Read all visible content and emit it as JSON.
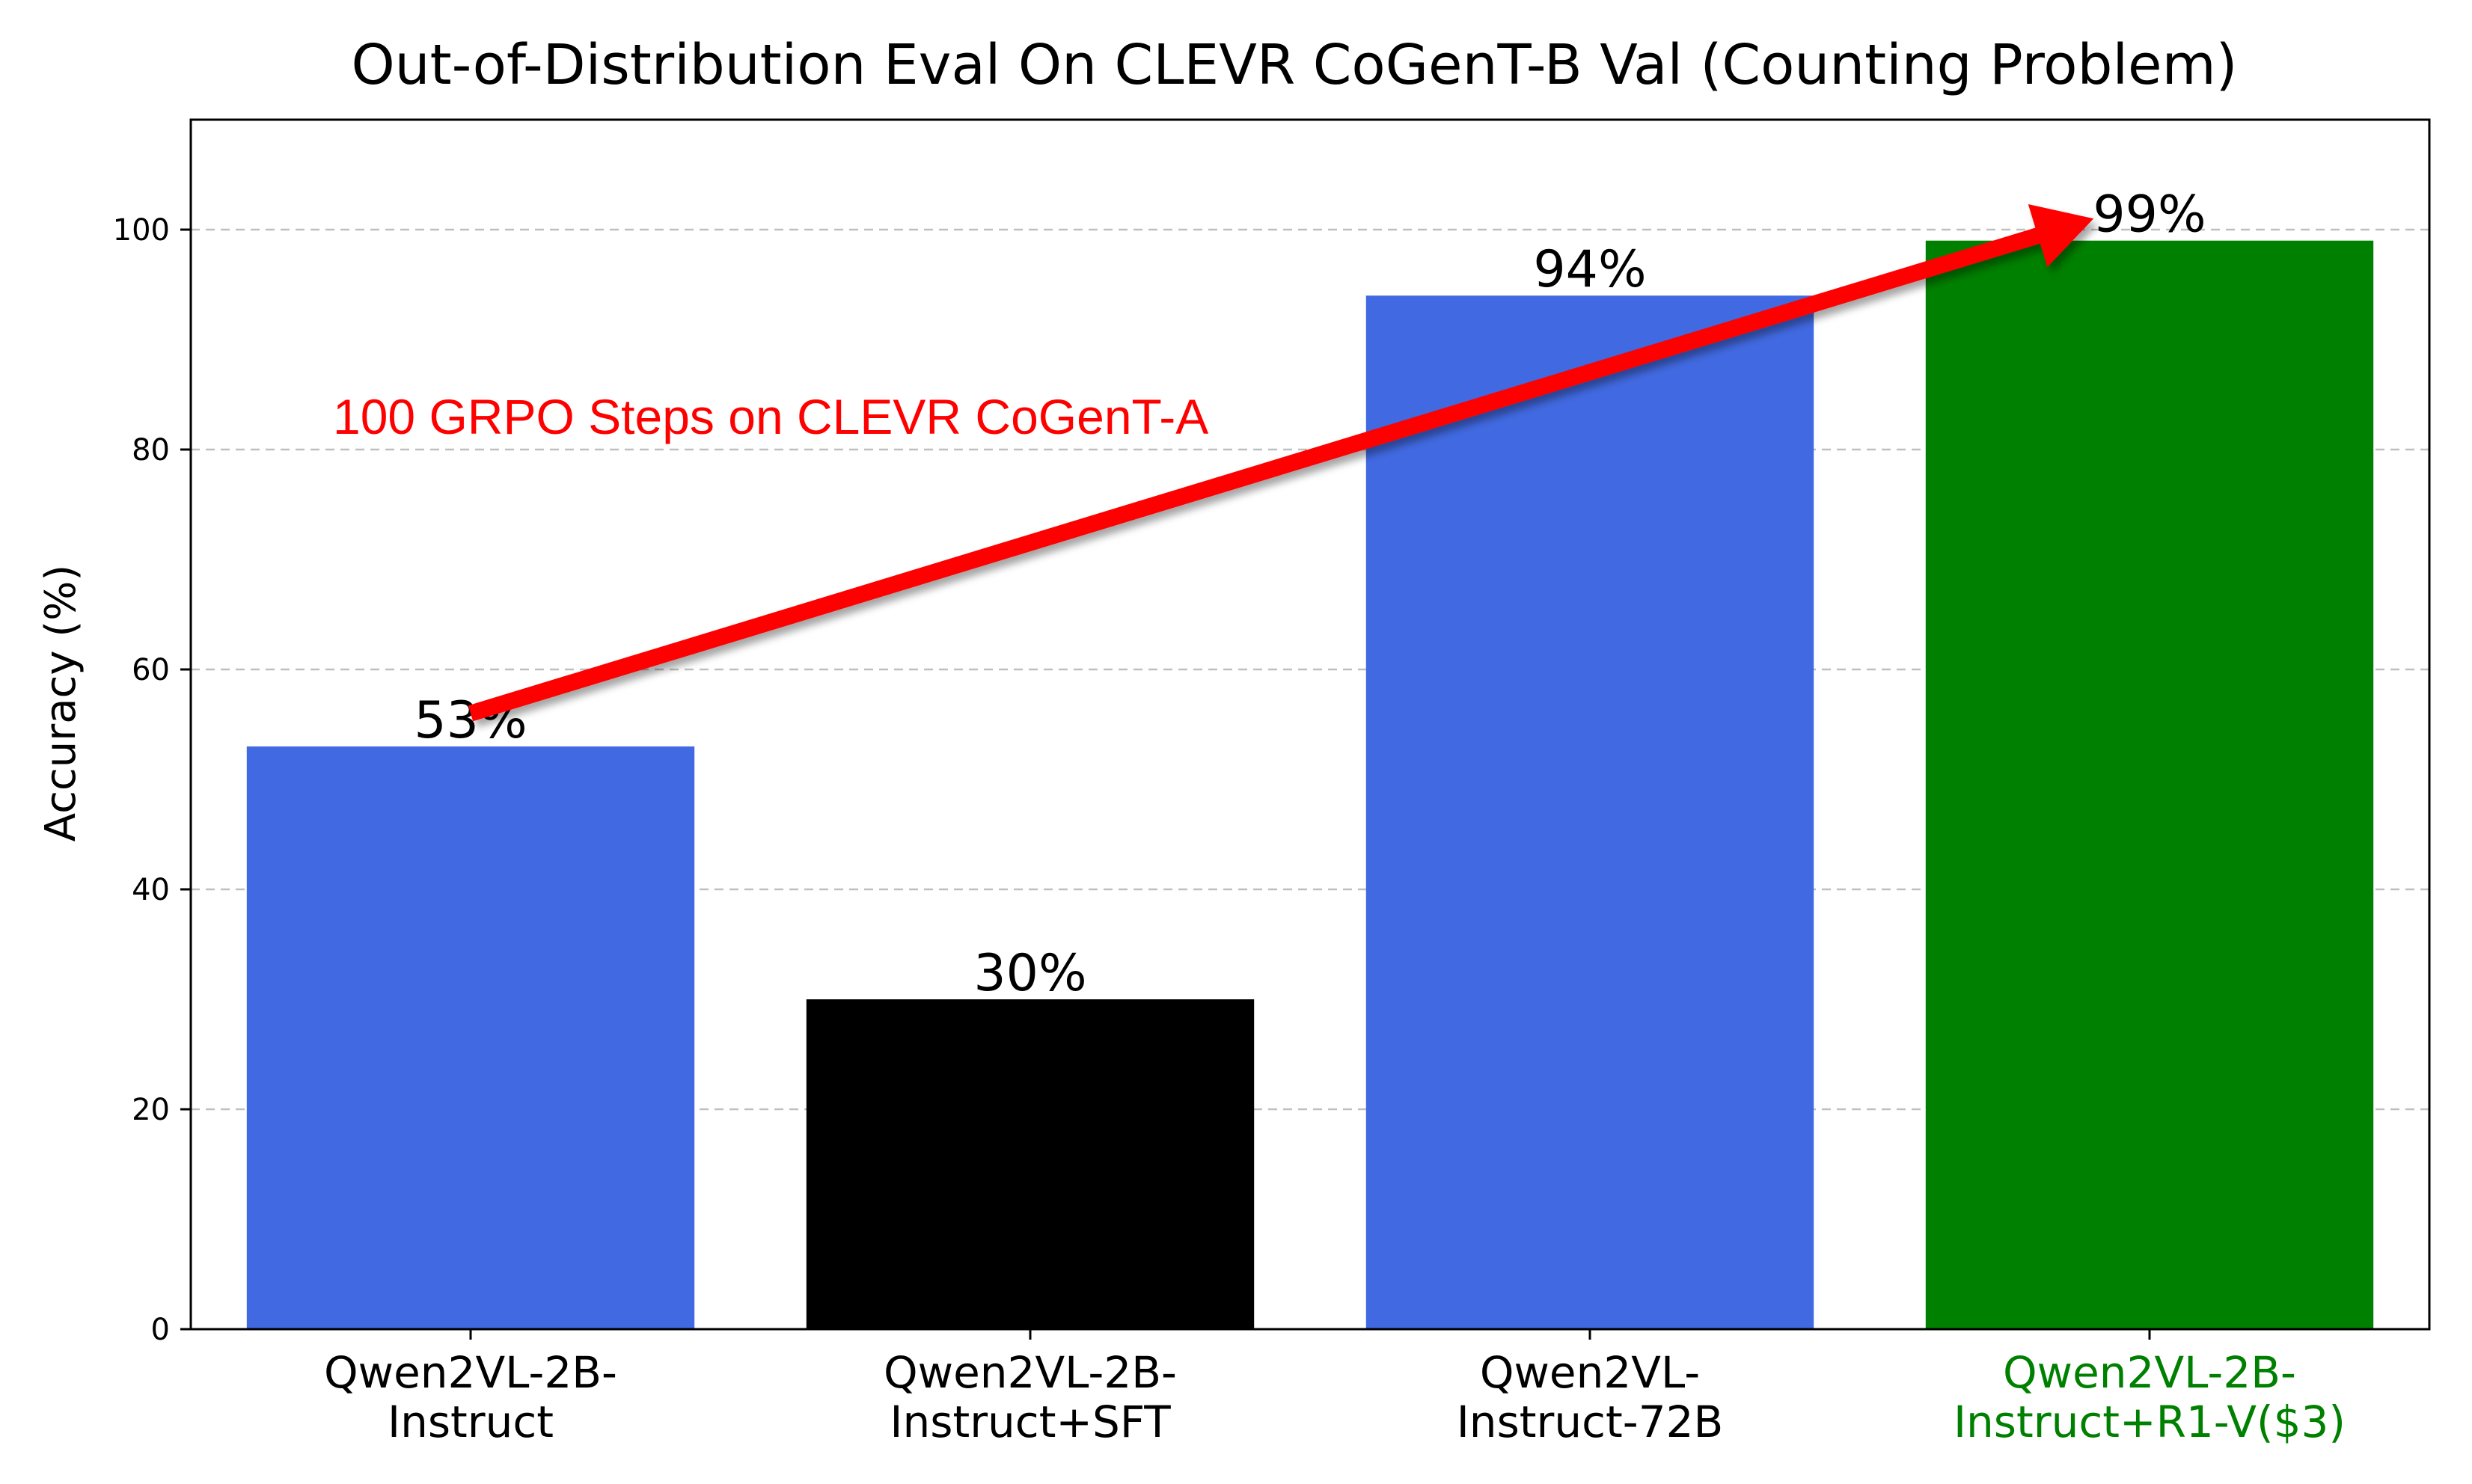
{
  "chart_data": {
    "type": "bar",
    "title": "Out-of-Distribution Eval On CLEVR CoGenT-B Val (Counting Problem)",
    "xlabel": "",
    "ylabel": "Accuracy (%)",
    "ylim": [
      0,
      110
    ],
    "yticks": [
      0,
      20,
      40,
      60,
      80,
      100
    ],
    "grid": "y-dashed",
    "categories": [
      [
        "Qwen2VL-2B-",
        "Instruct"
      ],
      [
        "Qwen2VL-2B-",
        "Instruct+SFT"
      ],
      [
        "Qwen2VL-",
        "Instruct-72B"
      ],
      [
        "Qwen2VL-2B-",
        "Instruct+R1-V($3)"
      ]
    ],
    "values": [
      53,
      30,
      94,
      99
    ],
    "value_labels": [
      "53%",
      "30%",
      "94%",
      "99%"
    ],
    "bar_colors": [
      "#4169e1",
      "#000000",
      "#4169e1",
      "#008000"
    ],
    "tick_label_colors": [
      "#000000",
      "#000000",
      "#000000",
      "#008000"
    ],
    "annotation": {
      "text": "100 GRPO Steps on CLEVR CoGenT-A",
      "color": "#ff0000",
      "arrow_from": {
        "category_index": 0,
        "value": 56
      },
      "arrow_to": {
        "category_index": 2.9,
        "value": 101
      }
    }
  }
}
